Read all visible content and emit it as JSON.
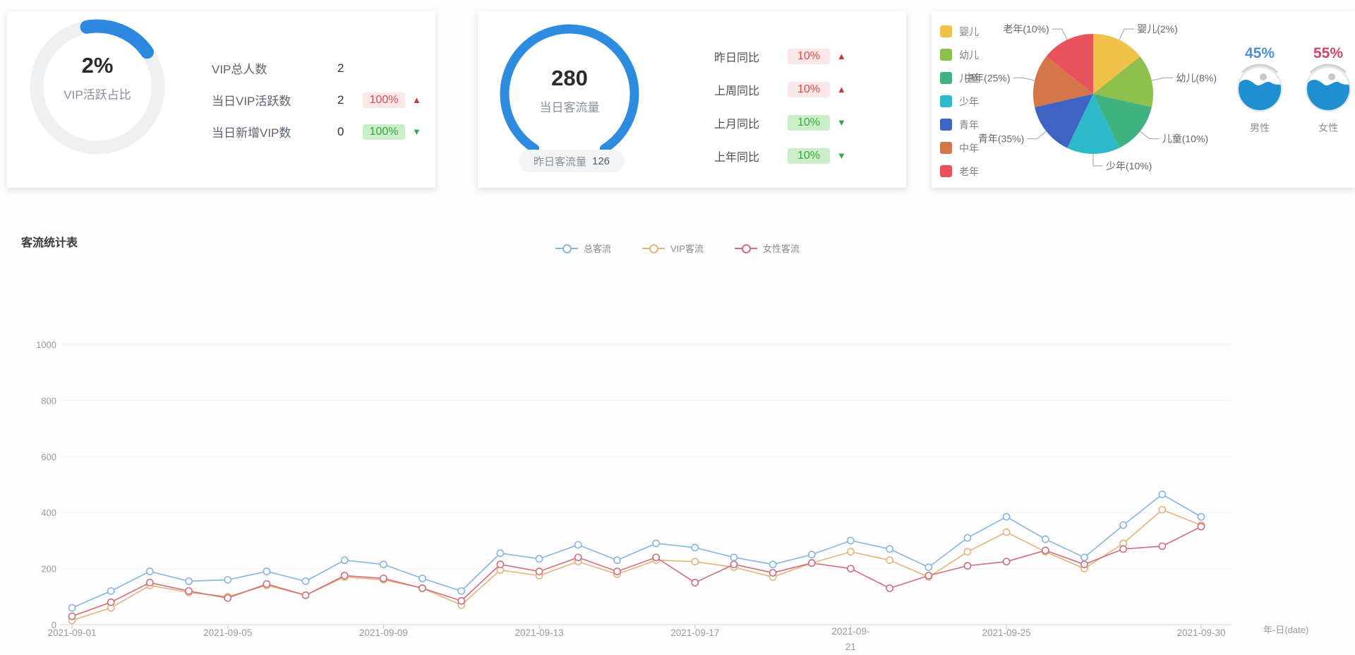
{
  "cards": {
    "vip": {
      "percent": "2%",
      "percent_label": "VIP活跃占比",
      "rows": [
        {
          "label": "VIP总人数",
          "value": "2",
          "badge": "",
          "trend": ""
        },
        {
          "label": "当日VIP活跃数",
          "value": "2",
          "badge": "100%",
          "trend": "up"
        },
        {
          "label": "当日新增VIP数",
          "value": "0",
          "badge": "100%",
          "trend": "down"
        }
      ]
    },
    "traffic": {
      "value": "280",
      "value_label": "当日客流量",
      "pill": {
        "label": "昨日客流量",
        "value": "126"
      },
      "rows": [
        {
          "label": "昨日同比",
          "badge": "10%",
          "trend": "up"
        },
        {
          "label": "上周同比",
          "badge": "10%",
          "trend": "up"
        },
        {
          "label": "上月同比",
          "badge": "10%",
          "trend": "down"
        },
        {
          "label": "上年同比",
          "badge": "10%",
          "trend": "down"
        }
      ]
    },
    "demographics": {
      "gender": [
        {
          "percent": "45%",
          "label": "男性",
          "percent_color": "#4a90d9"
        },
        {
          "percent": "55%",
          "label": "女性",
          "percent_color": "#cf4766"
        }
      ]
    }
  },
  "flow": {
    "title": "客流统计表"
  },
  "chart_data": [
    {
      "type": "line",
      "title": "客流统计表",
      "xlabel": "年-日(date)",
      "ylim": [
        0,
        1000
      ],
      "yticks": [
        0,
        200,
        400,
        600,
        800,
        1000
      ],
      "grid": "faint",
      "legend_position": "top-center",
      "x": [
        "2021-09-01",
        "2021-09-02",
        "2021-09-03",
        "2021-09-04",
        "2021-09-05",
        "2021-09-06",
        "2021-09-07",
        "2021-09-08",
        "2021-09-09",
        "2021-09-10",
        "2021-09-11",
        "2021-09-12",
        "2021-09-13",
        "2021-09-14",
        "2021-09-15",
        "2021-09-16",
        "2021-09-17",
        "2021-09-18",
        "2021-09-19",
        "2021-09-20",
        "2021-09-21",
        "2021-09-22",
        "2021-09-23",
        "2021-09-24",
        "2021-09-25",
        "2021-09-26",
        "2021-09-27",
        "2021-09-28",
        "2021-09-29",
        "2021-09-30"
      ],
      "xtick_labels": [
        "2021-09-01",
        "2021-09-05",
        "2021-09-09",
        "2021-09-13",
        "2021-09-17",
        "2021-09-21",
        "2021-09-25",
        "2021-09-30"
      ],
      "series": [
        {
          "name": "总客流",
          "color": "#85b5e5",
          "values": [
            60,
            120,
            190,
            155,
            160,
            190,
            155,
            230,
            215,
            165,
            120,
            255,
            235,
            285,
            230,
            290,
            275,
            240,
            215,
            250,
            300,
            270,
            205,
            310,
            385,
            305,
            240,
            355,
            465,
            385
          ]
        },
        {
          "name": "VIP客流",
          "color": "#e6b37b",
          "values": [
            15,
            60,
            140,
            115,
            100,
            140,
            105,
            170,
            160,
            130,
            70,
            195,
            175,
            225,
            180,
            230,
            225,
            205,
            170,
            220,
            260,
            230,
            170,
            260,
            330,
            260,
            200,
            290,
            410,
            355
          ]
        },
        {
          "name": "女性客流",
          "color": "#d16e7d",
          "values": [
            30,
            80,
            150,
            120,
            95,
            145,
            105,
            175,
            165,
            130,
            85,
            215,
            190,
            240,
            190,
            240,
            150,
            215,
            185,
            220,
            200,
            130,
            175,
            210,
            225,
            265,
            215,
            270,
            280,
            350
          ]
        }
      ]
    },
    {
      "type": "pie",
      "categories": [
        "婴儿",
        "幼儿",
        "儿童",
        "少年",
        "青年",
        "中年",
        "老年"
      ],
      "values": [
        2,
        8,
        10,
        10,
        35,
        25,
        10
      ],
      "unit": "%",
      "colors": [
        "#f0c24a",
        "#8fbf4d",
        "#3fb27f",
        "#2cb9c8",
        "#3f63c3",
        "#d4764a",
        "#e8525c"
      ],
      "legend_position": "left",
      "render_equal_slices": true
    }
  ]
}
